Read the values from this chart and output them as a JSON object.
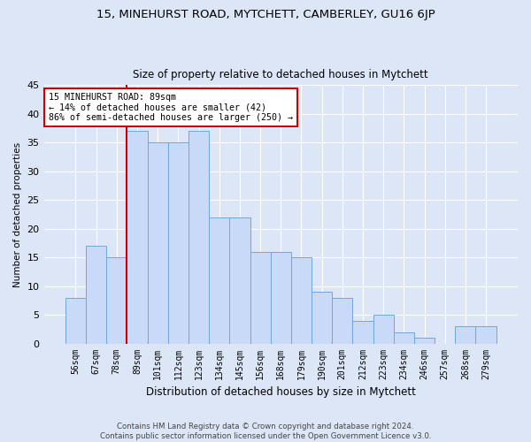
{
  "title1": "15, MINEHURST ROAD, MYTCHETT, CAMBERLEY, GU16 6JP",
  "title2": "Size of property relative to detached houses in Mytchett",
  "xlabel": "Distribution of detached houses by size in Mytchett",
  "ylabel": "Number of detached properties",
  "bin_labels": [
    "56sqm",
    "67sqm",
    "78sqm",
    "89sqm",
    "101sqm",
    "112sqm",
    "123sqm",
    "134sqm",
    "145sqm",
    "156sqm",
    "168sqm",
    "179sqm",
    "190sqm",
    "201sqm",
    "212sqm",
    "223sqm",
    "234sqm",
    "246sqm",
    "257sqm",
    "268sqm",
    "279sqm"
  ],
  "bar_heights": [
    8,
    17,
    15,
    37,
    35,
    35,
    37,
    22,
    22,
    16,
    16,
    15,
    9,
    8,
    4,
    5,
    2,
    1,
    0,
    3,
    3
  ],
  "bar_color": "#c9daf8",
  "bar_edge_color": "#6fa8dc",
  "vline_color": "#cc0000",
  "vline_bin_index": 3,
  "annotation_title": "15 MINEHURST ROAD: 89sqm",
  "annotation_line1": "← 14% of detached houses are smaller (42)",
  "annotation_line2": "86% of semi-detached houses are larger (250) →",
  "annotation_box_color": "#cc0000",
  "ylim": [
    0,
    45
  ],
  "yticks": [
    0,
    5,
    10,
    15,
    20,
    25,
    30,
    35,
    40,
    45
  ],
  "footer1": "Contains HM Land Registry data © Crown copyright and database right 2024.",
  "footer2": "Contains public sector information licensed under the Open Government Licence v3.0.",
  "bg_color": "#dce6f7",
  "plot_bg_color": "#dce6f7"
}
